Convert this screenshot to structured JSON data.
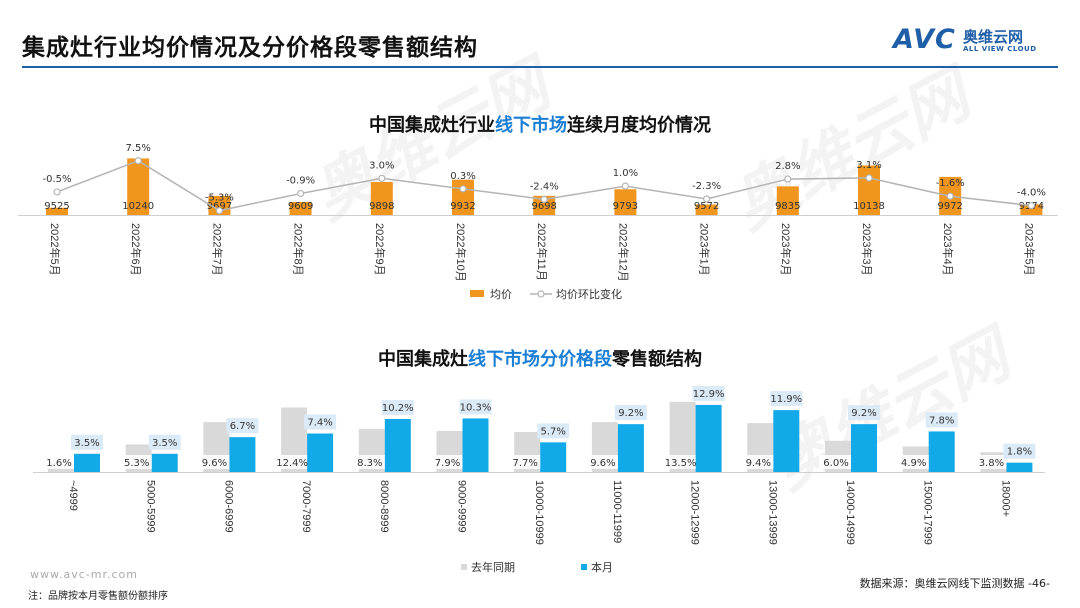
{
  "page": {
    "title": "集成灶行业均价情况及分价格段零售额结构",
    "logo_mark": "AVC",
    "logo_cn": "奥维云网",
    "logo_en": "ALL VIEW CLOUD",
    "footer_url": "www.avc-mr.com",
    "footer_note": "注：品牌按本月零售额份额排序",
    "footer_source": "数据来源：奥维云网线下监测数据 -46-",
    "watermark": "奥维云网"
  },
  "colors": {
    "brand": "#1f5fa8",
    "orange": "#f0961e",
    "line": "#b4b4b4",
    "gray_bar": "#d9d9d9",
    "blue_bar": "#11a9e8",
    "highlight": "#1b7fd6"
  },
  "chart_data": [
    {
      "type": "bar",
      "title_prefix": "中国集成灶行业",
      "title_highlight": "线下市场",
      "title_suffix": "连续月度均价情况",
      "categories": [
        "2022年5月",
        "2022年6月",
        "2022年7月",
        "2022年8月",
        "2022年9月",
        "2022年10月",
        "2022年11月",
        "2022年12月",
        "2023年1月",
        "2023年2月",
        "2023年3月",
        "2023年4月",
        "2023年5月"
      ],
      "series": [
        {
          "name": "均价",
          "type": "bar",
          "values": [
            9525,
            10240,
            9697,
            9609,
            9898,
            9932,
            9698,
            9793,
            9572,
            9835,
            10138,
            9972,
            9574
          ]
        },
        {
          "name": "均价环比变化",
          "type": "line",
          "values": [
            -0.5,
            7.5,
            -5.3,
            -0.9,
            3.0,
            0.3,
            -2.4,
            1.0,
            -2.3,
            2.8,
            3.1,
            -1.6,
            -4.0
          ],
          "labels": [
            "-0.5%",
            "7.5%",
            "-5.3%",
            "-0.9%",
            "3.0%",
            "0.3%",
            "-2.4%",
            "1.0%",
            "-2.3%",
            "2.8%",
            "3.1%",
            "-1.6%",
            "-4.0%"
          ]
        }
      ],
      "legend": [
        "均价",
        "均价环比变化"
      ]
    },
    {
      "type": "bar",
      "title_prefix": "中国集成灶",
      "title_highlight": "线下市场分价格段",
      "title_suffix": "零售额结构",
      "categories": [
        "~4999",
        "5000-5999",
        "6000-6999",
        "7000-7999",
        "8000-8999",
        "9000-9999",
        "10000-10999",
        "11000-11999",
        "12000-12999",
        "13000-13999",
        "14000-14999",
        "15000-17999",
        "18000+"
      ],
      "series": [
        {
          "name": "去年同期",
          "values": [
            1.6,
            5.3,
            9.6,
            12.4,
            8.3,
            7.9,
            7.7,
            9.6,
            13.5,
            9.4,
            6.0,
            4.9,
            3.8
          ],
          "labels": [
            "1.6%",
            "5.3%",
            "9.6%",
            "12.4%",
            "8.3%",
            "7.9%",
            "7.7%",
            "9.6%",
            "13.5%",
            "9.4%",
            "6.0%",
            "4.9%",
            "3.8%"
          ]
        },
        {
          "name": "本月",
          "values": [
            3.5,
            3.5,
            6.7,
            7.4,
            10.2,
            10.3,
            5.7,
            9.2,
            12.9,
            11.9,
            9.2,
            7.8,
            1.8
          ],
          "labels": [
            "3.5%",
            "3.5%",
            "6.7%",
            "7.4%",
            "10.2%",
            "10.3%",
            "5.7%",
            "9.2%",
            "12.9%",
            "11.9%",
            "9.2%",
            "7.8%",
            "1.8%"
          ]
        }
      ],
      "legend": [
        "去年同期",
        "本月"
      ]
    }
  ]
}
